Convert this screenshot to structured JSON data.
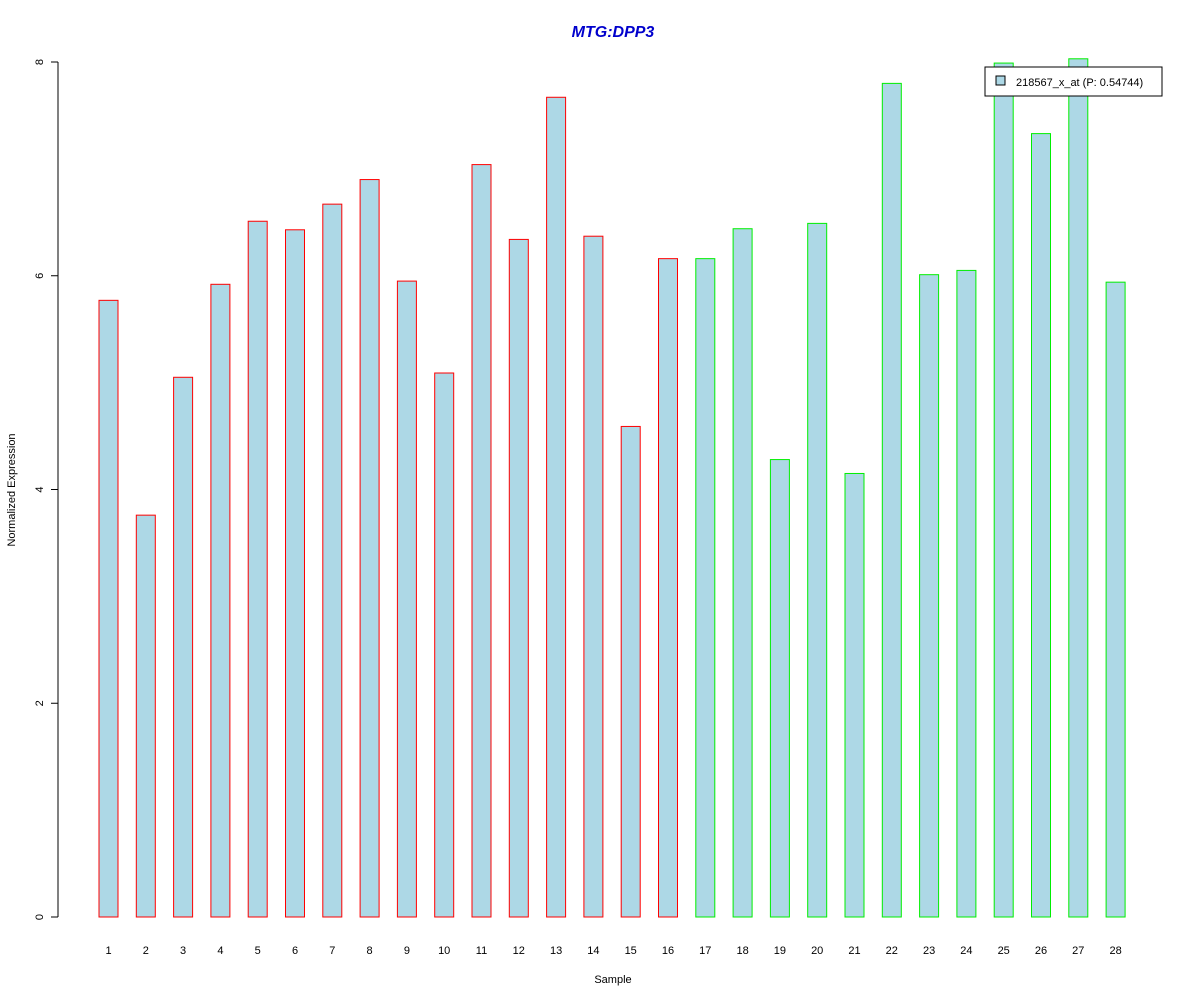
{
  "chart_data": {
    "type": "bar",
    "title": "MTG:DPP3",
    "xlabel": "Sample",
    "ylabel": "Normalized Expression",
    "ylim": [
      0,
      8
    ],
    "yticks": [
      0,
      2,
      4,
      6,
      8
    ],
    "grid": false,
    "legend_placement": "top-right",
    "categories": [
      "1",
      "2",
      "3",
      "4",
      "5",
      "6",
      "7",
      "8",
      "9",
      "10",
      "11",
      "12",
      "13",
      "14",
      "15",
      "16",
      "17",
      "18",
      "19",
      "20",
      "21",
      "22",
      "23",
      "24",
      "25",
      "26",
      "27",
      "28"
    ],
    "series": [
      {
        "name": "218567_x_at (P: 0.54744)",
        "fill_color": "#add8e6",
        "values": [
          5.77,
          3.76,
          5.05,
          5.92,
          6.51,
          6.43,
          6.67,
          6.9,
          5.95,
          5.09,
          7.04,
          6.34,
          7.67,
          6.37,
          4.59,
          6.16,
          6.16,
          6.44,
          4.28,
          6.49,
          4.15,
          7.8,
          6.01,
          6.05,
          7.99,
          7.33,
          8.03,
          5.94
        ]
      }
    ],
    "groups": [
      {
        "samples": [
          1,
          16
        ],
        "border_color": "#ff0000"
      },
      {
        "samples": [
          17,
          28
        ],
        "border_color": "#00ee00"
      }
    ],
    "title_color": "#0000cc"
  }
}
